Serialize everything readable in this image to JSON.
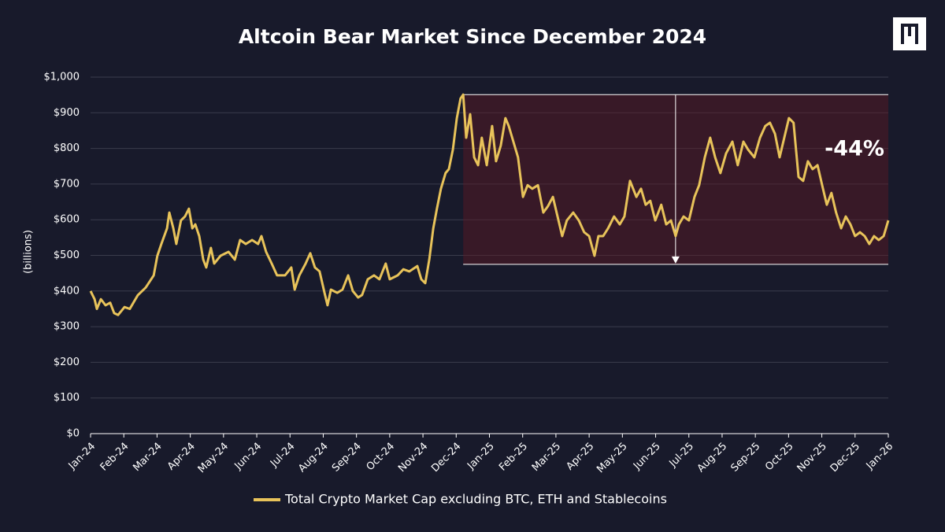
{
  "chart_data": {
    "type": "line",
    "title": "Altcoin Bear Market Since December 2024",
    "y_label": "(billions)",
    "annotation": "-44%",
    "grid": true,
    "xlim": [
      0,
      24
    ],
    "ylim": [
      0,
      1000
    ],
    "xticks": [
      {
        "value": 0,
        "label": "Jan-24"
      },
      {
        "value": 1,
        "label": "Feb-24"
      },
      {
        "value": 2,
        "label": "Mar-24"
      },
      {
        "value": 3,
        "label": "Apr-24"
      },
      {
        "value": 4,
        "label": "May-24"
      },
      {
        "value": 5,
        "label": "Jun-24"
      },
      {
        "value": 6,
        "label": "Jul-24"
      },
      {
        "value": 7,
        "label": "Aug-24"
      },
      {
        "value": 8,
        "label": "Sep-24"
      },
      {
        "value": 9,
        "label": "Oct-24"
      },
      {
        "value": 10,
        "label": "Nov-24"
      },
      {
        "value": 11,
        "label": "Dec-24"
      },
      {
        "value": 12,
        "label": "Jan-25"
      },
      {
        "value": 13,
        "label": "Feb-25"
      },
      {
        "value": 14,
        "label": "Mar-25"
      },
      {
        "value": 15,
        "label": "Apr-25"
      },
      {
        "value": 16,
        "label": "May-25"
      },
      {
        "value": 17,
        "label": "Jun-25"
      },
      {
        "value": 18,
        "label": "Jul-25"
      },
      {
        "value": 19,
        "label": "Aug-25"
      },
      {
        "value": 20,
        "label": "Sep-25"
      },
      {
        "value": 21,
        "label": "Oct-25"
      },
      {
        "value": 22,
        "label": "Nov-25"
      },
      {
        "value": 23,
        "label": "Dec-25"
      },
      {
        "value": 24,
        "label": "Jan-26"
      }
    ],
    "yticks": [
      {
        "value": 0,
        "label": "$0"
      },
      {
        "value": 100,
        "label": "$100"
      },
      {
        "value": 200,
        "label": "$200"
      },
      {
        "value": 300,
        "label": "$300"
      },
      {
        "value": 400,
        "label": "$400"
      },
      {
        "value": 500,
        "label": "$500"
      },
      {
        "value": 600,
        "label": "$600"
      },
      {
        "value": 700,
        "label": "$700"
      },
      {
        "value": 800,
        "label": "$800"
      },
      {
        "value": 900,
        "label": "$900"
      },
      {
        "value": 1000,
        "label": "$1,000"
      }
    ],
    "highlight": {
      "x": [
        11.21,
        24
      ],
      "y": [
        475,
        951
      ],
      "arrow_x": 17.6
    },
    "x": [
      0,
      0.12,
      0.19,
      0.31,
      0.45,
      0.59,
      0.71,
      0.83,
      1.02,
      1.18,
      1.42,
      1.66,
      1.9,
      2.01,
      2.13,
      2.3,
      2.37,
      2.49,
      2.58,
      2.72,
      2.84,
      2.96,
      3.06,
      3.15,
      3.27,
      3.39,
      3.48,
      3.62,
      3.72,
      3.91,
      4.15,
      4.34,
      4.5,
      4.67,
      4.86,
      5.04,
      5.14,
      5.28,
      5.45,
      5.61,
      5.85,
      6.04,
      6.14,
      6.28,
      6.47,
      6.61,
      6.75,
      6.89,
      7.04,
      7.13,
      7.23,
      7.42,
      7.58,
      7.75,
      7.89,
      8.05,
      8.17,
      8.34,
      8.53,
      8.69,
      8.88,
      9,
      9.24,
      9.41,
      9.59,
      9.83,
      9.95,
      10.07,
      10.19,
      10.31,
      10.42,
      10.54,
      10.68,
      10.78,
      10.9,
      11.02,
      11.13,
      11.21,
      11.3,
      11.42,
      11.54,
      11.66,
      11.77,
      11.92,
      12.08,
      12.2,
      12.34,
      12.48,
      12.58,
      12.72,
      12.86,
      13.01,
      13.15,
      13.29,
      13.46,
      13.62,
      13.76,
      13.91,
      14.05,
      14.19,
      14.33,
      14.52,
      14.69,
      14.85,
      15,
      15.16,
      15.28,
      15.42,
      15.57,
      15.75,
      15.92,
      16.06,
      16.23,
      16.42,
      16.56,
      16.7,
      16.84,
      16.99,
      17.17,
      17.32,
      17.46,
      17.6,
      17.7,
      17.84,
      18,
      18.17,
      18.31,
      18.48,
      18.64,
      18.79,
      18.95,
      19.12,
      19.31,
      19.47,
      19.64,
      19.78,
      19.97,
      20.14,
      20.3,
      20.44,
      20.59,
      20.73,
      20.87,
      21.01,
      21.15,
      21.3,
      21.44,
      21.58,
      21.72,
      21.87,
      22.01,
      22.15,
      22.29,
      22.43,
      22.58,
      22.72,
      22.86,
      23,
      23.15,
      23.29,
      23.43,
      23.57,
      23.71,
      23.86,
      24
    ],
    "series": [
      {
        "name": "Total Crypto Market Cap excluding BTC, ETH and Stablecoins",
        "color": "#e8c35a",
        "values": [
          400,
          377,
          350,
          377,
          360,
          367,
          338,
          333,
          355,
          350,
          388,
          410,
          444,
          499,
          532,
          576,
          620,
          576,
          532,
          598,
          609,
          631,
          576,
          587,
          554,
          488,
          466,
          521,
          477,
          499,
          510,
          488,
          543,
          532,
          543,
          532,
          554,
          510,
          477,
          444,
          444,
          466,
          404,
          444,
          477,
          506,
          466,
          455,
          395,
          360,
          404,
          395,
          404,
          444,
          400,
          382,
          389,
          433,
          444,
          433,
          477,
          433,
          444,
          461,
          455,
          470,
          433,
          422,
          488,
          576,
          631,
          687,
          731,
          742,
          797,
          885,
          940,
          951,
          830,
          896,
          775,
          753,
          830,
          753,
          863,
          764,
          808,
          885,
          863,
          819,
          775,
          664,
          697,
          687,
          697,
          620,
          638,
          664,
          609,
          554,
          598,
          620,
          598,
          565,
          554,
          499,
          554,
          554,
          576,
          609,
          587,
          609,
          709,
          664,
          687,
          642,
          653,
          598,
          642,
          587,
          598,
          554,
          587,
          609,
          598,
          664,
          697,
          775,
          830,
          775,
          731,
          786,
          819,
          753,
          819,
          797,
          775,
          830,
          863,
          872,
          841,
          775,
          830,
          885,
          872,
          720,
          709,
          764,
          742,
          753,
          697,
          642,
          675,
          620,
          576,
          609,
          587,
          554,
          565,
          554,
          532,
          554,
          543,
          554,
          598
        ]
      }
    ]
  }
}
